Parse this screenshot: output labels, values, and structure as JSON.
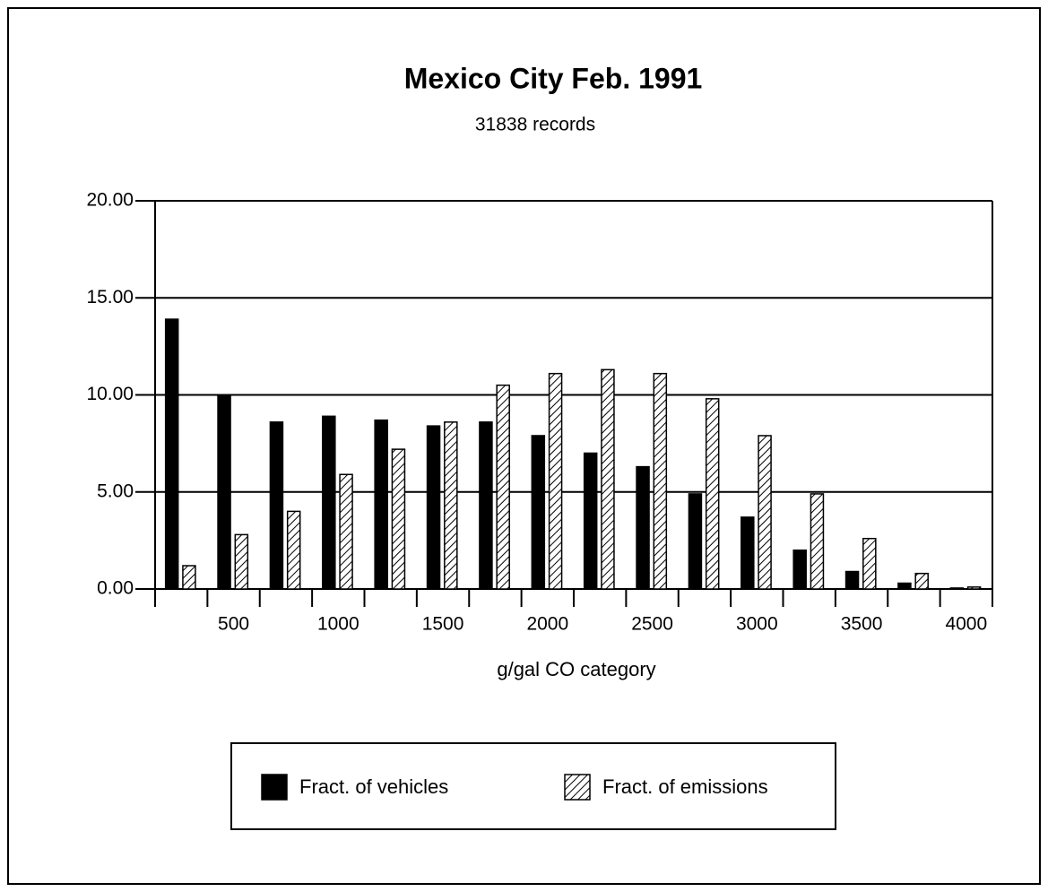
{
  "chart_data": {
    "type": "bar",
    "title": "Mexico City Feb. 1991",
    "subtitle": "31838 records",
    "x_label": "g/gal CO category",
    "categories": [
      null,
      "500",
      null,
      "1000",
      null,
      "1500",
      null,
      "2000",
      null,
      "2500",
      null,
      "3000",
      null,
      "3500",
      null,
      "4000"
    ],
    "series": [
      {
        "name": "Fract. of vehicles",
        "color": "#000000",
        "values": [
          13.9,
          10.0,
          8.6,
          8.9,
          8.7,
          8.4,
          8.6,
          7.9,
          7.0,
          6.3,
          4.9,
          3.7,
          2.0,
          0.9,
          0.3,
          0.05
        ]
      },
      {
        "name": "Fract. of emissions",
        "color": "hatch",
        "values": [
          1.2,
          2.8,
          4.0,
          5.9,
          7.2,
          8.6,
          10.5,
          11.1,
          11.3,
          11.1,
          9.8,
          7.9,
          4.9,
          2.6,
          0.8,
          0.1
        ]
      }
    ],
    "ylim": [
      0,
      20
    ],
    "yticks": [
      {
        "value": 0,
        "label": "0.00"
      },
      {
        "value": 5,
        "label": "5.00"
      },
      {
        "value": 10,
        "label": "10.00"
      },
      {
        "value": 15,
        "label": "15.00"
      },
      {
        "value": 20,
        "label": "20.00"
      }
    ],
    "grid": true,
    "legend": "bottom"
  }
}
